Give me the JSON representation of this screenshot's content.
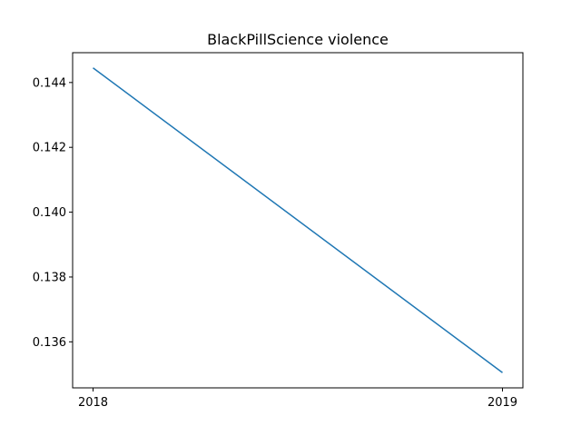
{
  "chart_data": {
    "type": "line",
    "title": "BlackPillScience violence",
    "xlabel": "",
    "ylabel": "",
    "categories": [
      "2018",
      "2019"
    ],
    "series": [
      {
        "values": [
          0.14445,
          0.13505
        ],
        "color": "#1f77b4"
      }
    ],
    "ylim": [
      0.13458,
      0.14492
    ],
    "yticks": [
      "0.136",
      "0.138",
      "0.140",
      "0.142",
      "0.144"
    ],
    "grid": false
  }
}
